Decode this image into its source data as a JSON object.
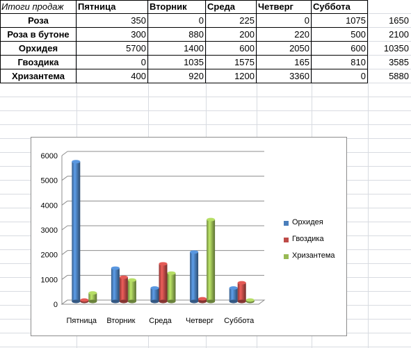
{
  "table": {
    "header": [
      "Итоги продаж",
      "Пятница",
      "Вторник",
      "Среда",
      "Четверг",
      "Суббота"
    ],
    "rows": [
      {
        "name": "Роза",
        "values": [
          "350",
          "0",
          "225",
          "0",
          "1075"
        ],
        "total": "1650"
      },
      {
        "name": "Роза в бутоне",
        "values": [
          "300",
          "880",
          "200",
          "220",
          "500"
        ],
        "total": "2100"
      },
      {
        "name": "Орхидея",
        "values": [
          "5700",
          "1400",
          "600",
          "2050",
          "600"
        ],
        "total": "10350"
      },
      {
        "name": "Гвоздика",
        "values": [
          "0",
          "1035",
          "1575",
          "165",
          "810"
        ],
        "total": "3585"
      },
      {
        "name": "Хризантема",
        "values": [
          "400",
          "920",
          "1200",
          "3360",
          "0"
        ],
        "total": "5880"
      }
    ]
  },
  "chart_data": {
    "type": "bar",
    "style": "3d-cylinder-clustered",
    "categories": [
      "Пятница",
      "Вторник",
      "Среда",
      "Четверг",
      "Суббота"
    ],
    "series": [
      {
        "name": "Орхидея",
        "values": [
          5700,
          1400,
          600,
          2050,
          600
        ],
        "color": "#4a7ebb"
      },
      {
        "name": "Гвоздика",
        "values": [
          0,
          1035,
          1575,
          165,
          810
        ],
        "color": "#be4b48"
      },
      {
        "name": "Хризантема",
        "values": [
          400,
          920,
          1200,
          3360,
          0
        ],
        "color": "#98b954"
      }
    ],
    "ylim": [
      0,
      6000
    ],
    "yticks": [
      "0",
      "1000",
      "2000",
      "3000",
      "4000",
      "5000",
      "6000"
    ],
    "grid": true,
    "legend": "right"
  }
}
